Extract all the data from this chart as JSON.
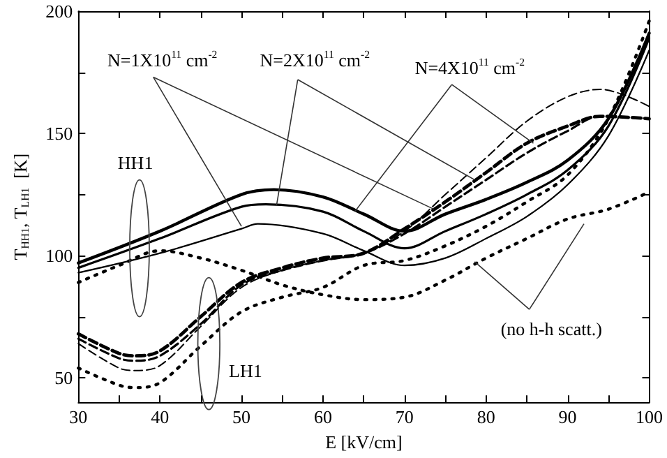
{
  "chart_data": {
    "type": "line",
    "xlabel": "E [kV/cm]",
    "ylabel": "T$_{HH1}$, T$_{LH1}$  [K]",
    "xlim": [
      30,
      100
    ],
    "ylim": [
      40,
      200
    ],
    "xticks": [
      30,
      {
        "value": 35,
        "label": null
      },
      40,
      {
        "value": 45,
        "label": null
      },
      50,
      {
        "value": 55,
        "label": null
      },
      60,
      {
        "value": 65,
        "label": null
      },
      70,
      {
        "value": 75,
        "label": null
      },
      80,
      {
        "value": 85,
        "label": null
      },
      90,
      {
        "value": 95,
        "label": null
      },
      100
    ],
    "yticks": [
      50,
      {
        "value": 75,
        "label": null
      },
      100,
      {
        "value": 125,
        "label": null
      },
      150,
      {
        "value": 175,
        "label": null
      },
      200
    ],
    "marker": "none",
    "series": [
      {
        "type": "line",
        "line_style": "solid",
        "color": "#000000",
        "x": [
          30,
          40,
          50,
          54,
          60,
          65,
          70,
          75,
          80,
          85,
          90,
          95,
          100
        ],
        "values": [
          97,
          110,
          125,
          127,
          124,
          117,
          110,
          117,
          123,
          130,
          139,
          156,
          191
        ]
      },
      {
        "type": "line",
        "line_style": "solid",
        "color": "#000000",
        "x": [
          30,
          40,
          50,
          53,
          60,
          65,
          70,
          75,
          80,
          85,
          90,
          95,
          100
        ],
        "values": [
          95,
          107,
          120,
          121,
          118,
          110,
          103,
          110,
          117,
          125,
          135,
          153,
          189
        ]
      },
      {
        "type": "line",
        "line_style": "solid",
        "color": "#000000",
        "x": [
          30,
          40,
          50,
          52,
          60,
          65,
          70,
          75,
          80,
          85,
          90,
          95,
          100
        ],
        "values": [
          93,
          101,
          111,
          113,
          109,
          102,
          96,
          99,
          107,
          116,
          129,
          149,
          184
        ]
      },
      {
        "type": "line",
        "line_style": "dotted",
        "color": "#000000",
        "x": [
          30,
          35,
          40,
          45,
          50,
          55,
          60,
          65,
          70,
          75,
          80,
          85,
          90,
          95,
          100
        ],
        "values": [
          89,
          96,
          102,
          99,
          94,
          88,
          84,
          82,
          83,
          90,
          99,
          107,
          115,
          119,
          126
        ]
      },
      {
        "type": "line",
        "line_style": "dashed",
        "color": "#000000",
        "x": [
          30,
          35,
          37,
          40,
          45,
          50,
          55,
          60,
          65,
          70,
          75,
          80,
          85,
          90,
          94,
          100
        ],
        "values": [
          68,
          60,
          59,
          61,
          75,
          89,
          95,
          99,
          101,
          111,
          122,
          134,
          146,
          153,
          157,
          156
        ]
      },
      {
        "type": "line",
        "line_style": "dashed",
        "color": "#000000",
        "x": [
          30,
          35,
          37,
          40,
          45,
          50,
          55,
          60,
          65,
          70,
          75,
          80,
          85,
          90,
          94,
          100
        ],
        "values": [
          66,
          58,
          57,
          59,
          72,
          88,
          94,
          98,
          101,
          109,
          120,
          131,
          142,
          151,
          157,
          156
        ]
      },
      {
        "type": "line",
        "line_style": "dashed",
        "color": "#000000",
        "x": [
          30,
          35,
          37,
          40,
          45,
          50,
          55,
          60,
          65,
          70,
          75,
          80,
          85,
          90,
          94,
          100
        ],
        "values": [
          64,
          54,
          53,
          55,
          71,
          87,
          94,
          98,
          101,
          110,
          125,
          140,
          155,
          165,
          168,
          161
        ]
      },
      {
        "type": "line",
        "line_style": "dotted",
        "color": "#000000",
        "x": [
          30,
          35,
          37,
          40,
          45,
          50,
          55,
          60,
          65,
          70,
          75,
          80,
          85,
          90,
          95,
          100
        ],
        "values": [
          54,
          47,
          46,
          48,
          63,
          77,
          83,
          87,
          96,
          98,
          104,
          112,
          122,
          133,
          156,
          196
        ]
      }
    ],
    "annotations": [
      {
        "text": "N=1X10$^{11}$ cm$^{-2}$",
        "x": 50,
        "y": 112
      },
      {
        "text": "N=2X10$^{11}$ cm$^{-2}$",
        "x": 54.3,
        "y": 120.5
      },
      {
        "text": "N=4X10$^{11}$ cm$^{-2}$",
        "x": 63.9,
        "y": 118
      },
      "HH1",
      "LH1",
      {
        "text": "(no h-h scatt.)",
        "x": 78.6,
        "y": 97.5
      }
    ]
  }
}
